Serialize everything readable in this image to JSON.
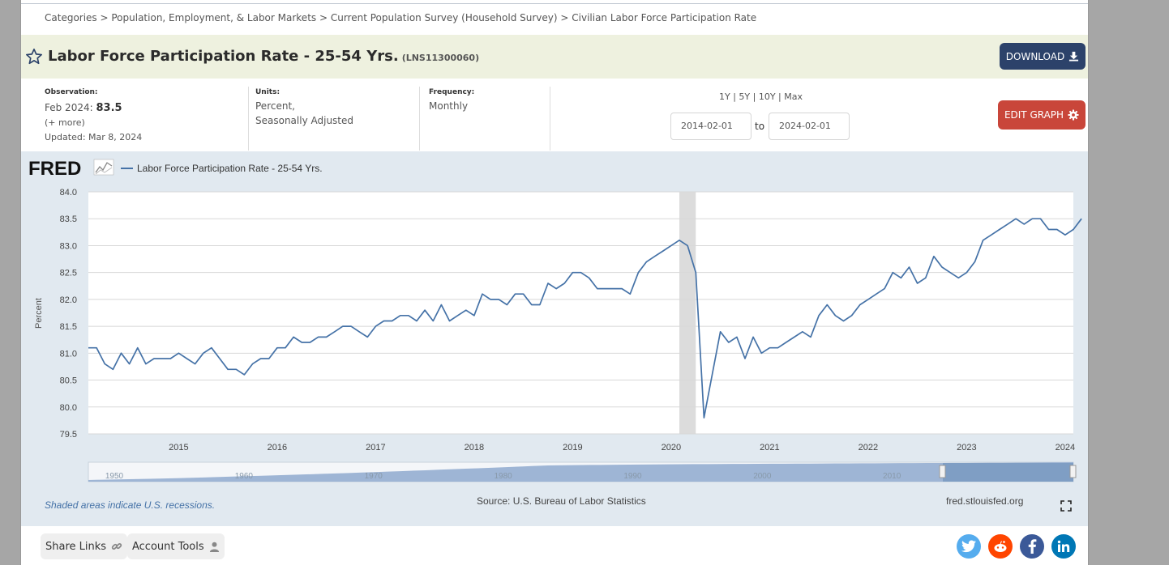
{
  "breadcrumb": {
    "items": [
      "Categories",
      "Population, Employment, & Labor Markets",
      "Current Population Survey (Household Survey)",
      "Civilian Labor Force Participation Rate"
    ],
    "sep": " > "
  },
  "title": {
    "name": "Labor Force Participation Rate - 25-54 Yrs.",
    "series_id": "(LNS11300060)"
  },
  "buttons": {
    "download": "DOWNLOAD",
    "edit_graph": "EDIT GRAPH"
  },
  "observation": {
    "label": "Observation:",
    "date": "Feb 2024:",
    "value": "83.5",
    "more": "(+ more)",
    "updated": "Updated: Mar 8, 2024"
  },
  "units": {
    "label": "Units:",
    "line1": "Percent,",
    "line2": "Seasonally Adjusted"
  },
  "frequency": {
    "label": "Frequency:",
    "value": "Monthly"
  },
  "date_ranges": [
    "1Y",
    "5Y",
    "10Y",
    "Max"
  ],
  "date_inputs": {
    "start": "2014-02-01",
    "to": "to",
    "end": "2024-02-01"
  },
  "graph": {
    "logo": "FRED",
    "recession_note": "Shaded areas indicate U.S. recessions.",
    "source": "Source: U.S. Bureau of Labor Statistics",
    "site": "fred.stlouisfed.org",
    "navigator_years": [
      "1950",
      "1960",
      "1970",
      "1980",
      "1990",
      "2000",
      "2010"
    ]
  },
  "footer": {
    "share_links": "Share Links",
    "account_tools": "Account Tools",
    "social": [
      "twitter-icon",
      "reddit-icon",
      "facebook-icon",
      "linkedin-icon"
    ]
  },
  "colors": {
    "line": "#4572a7",
    "download_bg": "#2c426a",
    "edit_bg": "#c9463a",
    "plot_bg": "#e1e9f0",
    "recession": "#dcdcdc"
  },
  "chart_data": {
    "type": "line",
    "title": "",
    "legend": "Labor Force Participation Rate - 25-54 Yrs.",
    "ylabel": "Percent",
    "xlabel": "",
    "ylim": [
      79.5,
      84.0
    ],
    "yticks": [
      "84.0",
      "83.5",
      "83.0",
      "82.5",
      "82.0",
      "81.5",
      "81.0",
      "80.5",
      "80.0",
      "79.5"
    ],
    "xticks": [
      "2015",
      "2016",
      "2017",
      "2018",
      "2019",
      "2020",
      "2021",
      "2022",
      "2023",
      "2024"
    ],
    "x_start": "2014-02",
    "x_end": "2024-02",
    "recession": {
      "start": "2020-02",
      "end": "2020-04"
    },
    "series": [
      {
        "name": "Labor Force Participation Rate - 25-54 Yrs.",
        "values": [
          81.1,
          81.1,
          80.8,
          80.7,
          81.0,
          80.8,
          81.1,
          80.8,
          80.9,
          80.9,
          80.9,
          81.0,
          80.9,
          80.8,
          81.0,
          81.1,
          80.9,
          80.7,
          80.7,
          80.6,
          80.8,
          80.9,
          80.9,
          81.1,
          81.1,
          81.3,
          81.2,
          81.2,
          81.3,
          81.3,
          81.4,
          81.5,
          81.5,
          81.4,
          81.3,
          81.5,
          81.6,
          81.6,
          81.7,
          81.7,
          81.6,
          81.8,
          81.6,
          81.9,
          81.6,
          81.7,
          81.8,
          81.7,
          82.1,
          82.0,
          82.0,
          81.9,
          82.1,
          82.1,
          81.9,
          81.9,
          82.3,
          82.2,
          82.3,
          82.5,
          82.5,
          82.4,
          82.2,
          82.2,
          82.2,
          82.2,
          82.1,
          82.5,
          82.7,
          82.8,
          82.9,
          83.0,
          83.1,
          83.0,
          82.5,
          79.8,
          80.6,
          81.4,
          81.2,
          81.3,
          80.9,
          81.3,
          81.0,
          81.1,
          81.1,
          81.2,
          81.3,
          81.4,
          81.3,
          81.7,
          81.9,
          81.7,
          81.6,
          81.7,
          81.9,
          82.0,
          82.1,
          82.2,
          82.5,
          82.4,
          82.6,
          82.3,
          82.4,
          82.8,
          82.6,
          82.5,
          82.4,
          82.5,
          82.7,
          83.1,
          83.2,
          83.3,
          83.4,
          83.5,
          83.4,
          83.5,
          83.5,
          83.3,
          83.3,
          83.2,
          83.3,
          83.5
        ]
      }
    ]
  }
}
